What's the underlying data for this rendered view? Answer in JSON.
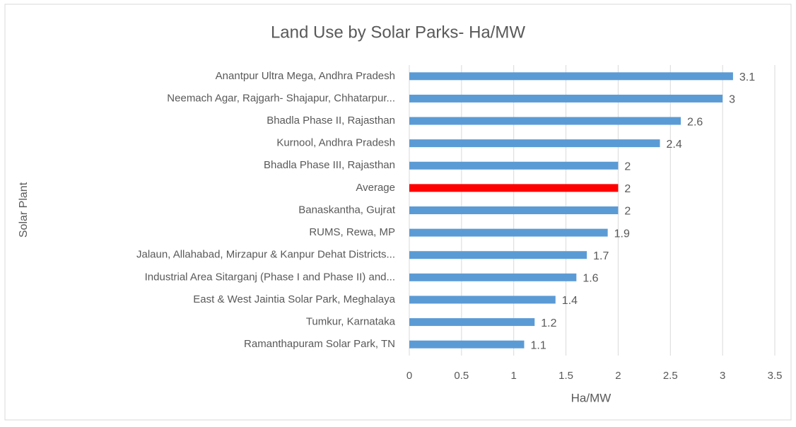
{
  "chart_data": {
    "type": "bar",
    "orientation": "horizontal",
    "title": "Land Use by Solar Parks- Ha/MW",
    "x_label": "Ha/MW",
    "y_label": "Solar Plant",
    "categories": [
      "Anantpur Ultra Mega, Andhra Pradesh",
      "Neemach Agar, Rajgarh- Shajapur, Chhatarpur...",
      "Bhadla Phase II, Rajasthan",
      "Kurnool, Andhra Pradesh",
      "Bhadla Phase III, Rajasthan",
      "Average",
      "Banaskantha, Gujrat",
      "RUMS, Rewa, MP",
      "Jalaun, Allahabad, Mirzapur & Kanpur Dehat Districts...",
      "Industrial Area Sitarganj (Phase I and Phase II) and...",
      "East & West Jaintia Solar Park, Meghalaya",
      "Tumkur, Karnataka",
      "Ramanthapuram Solar Park, TN"
    ],
    "values": [
      3.1,
      3,
      2.6,
      2.4,
      2,
      2,
      2,
      1.9,
      1.7,
      1.6,
      1.4,
      1.2,
      1.1
    ],
    "colors": [
      "#5b9bd5",
      "#5b9bd5",
      "#5b9bd5",
      "#5b9bd5",
      "#5b9bd5",
      "#ff0000",
      "#5b9bd5",
      "#5b9bd5",
      "#5b9bd5",
      "#5b9bd5",
      "#5b9bd5",
      "#5b9bd5",
      "#5b9bd5"
    ],
    "xlim": [
      0,
      3.5
    ],
    "xticks": [
      0,
      0.5,
      1,
      1.5,
      2,
      2.5,
      3,
      3.5
    ],
    "grid": true
  }
}
